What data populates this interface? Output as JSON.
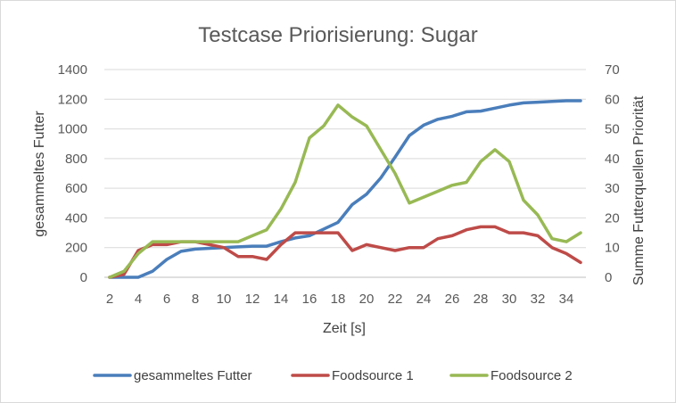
{
  "chart_data": {
    "type": "line",
    "title": "Testcase Priorisierung: Sugar",
    "xlabel": "Zeit [s]",
    "ylabel": "gesammeltes Futter",
    "y2label": "Summe Futterquellen Priorität",
    "x": [
      2,
      3,
      4,
      5,
      6,
      7,
      8,
      9,
      10,
      11,
      12,
      13,
      14,
      15,
      16,
      17,
      18,
      19,
      20,
      21,
      22,
      23,
      24,
      25,
      26,
      27,
      28,
      29,
      30,
      31,
      32,
      33,
      34,
      35
    ],
    "xticks": [
      "2",
      "4",
      "6",
      "8",
      "10",
      "12",
      "14",
      "16",
      "18",
      "20",
      "22",
      "24",
      "26",
      "28",
      "30",
      "32",
      "34"
    ],
    "xticks_values": [
      2,
      4,
      6,
      8,
      10,
      12,
      14,
      16,
      18,
      20,
      22,
      24,
      26,
      28,
      30,
      32,
      34
    ],
    "ylim": [
      0,
      1400
    ],
    "yticks": [
      "0",
      "200",
      "400",
      "600",
      "800",
      "1000",
      "1200",
      "1400"
    ],
    "yticks_values": [
      0,
      200,
      400,
      600,
      800,
      1000,
      1200,
      1400
    ],
    "y2lim": [
      0,
      70
    ],
    "y2ticks": [
      "0",
      "10",
      "20",
      "30",
      "40",
      "50",
      "60",
      "70"
    ],
    "y2ticks_values": [
      0,
      10,
      20,
      30,
      40,
      50,
      60,
      70
    ],
    "grid": "horizontal",
    "legend_position": "bottom",
    "series": [
      {
        "name": "gesammeltes Futter",
        "axis": "left",
        "color": "#4a7ebb",
        "values": [
          0,
          0,
          0,
          40,
          120,
          175,
          190,
          195,
          200,
          205,
          210,
          210,
          240,
          265,
          280,
          325,
          370,
          490,
          560,
          670,
          810,
          955,
          1025,
          1065,
          1085,
          1115,
          1120,
          1140,
          1160,
          1175,
          1180,
          1185,
          1190,
          1190
        ]
      },
      {
        "name": "Foodsource 1",
        "axis": "right",
        "color": "#be4b48",
        "values": [
          0,
          1,
          9,
          11,
          11,
          12,
          12,
          11,
          10,
          7,
          7,
          6,
          11,
          15,
          15,
          15,
          15,
          9,
          11,
          10,
          9,
          10,
          10,
          13,
          14,
          16,
          17,
          17,
          15,
          15,
          14,
          10,
          8,
          5
        ]
      },
      {
        "name": "Foodsource 2",
        "axis": "right",
        "color": "#98b954",
        "values": [
          0,
          2,
          8,
          12,
          12,
          12,
          12,
          12,
          12,
          12,
          14,
          16,
          23,
          32,
          47,
          51,
          58,
          54,
          51,
          43,
          35,
          25,
          27,
          29,
          31,
          32,
          39,
          43,
          39,
          26,
          21,
          13,
          12,
          15
        ]
      }
    ]
  }
}
